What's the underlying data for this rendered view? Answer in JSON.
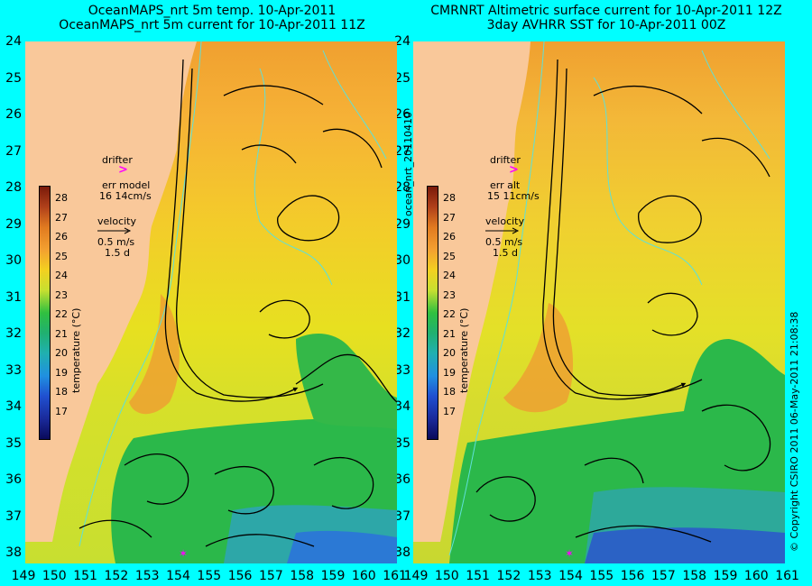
{
  "left_panel": {
    "title_line1": "OceanMAPS_nrt 5m temp. 10-Apr-2011",
    "title_line2": "OceanMAPS_nrt 5m current for 10-Apr-2011 11Z",
    "drifter_label": "drifter",
    "err_label": "err model",
    "err_value": "16 14cm/s",
    "velocity_label": "velocity",
    "velocity_scale": "0.5 m/s",
    "velocity_days": "1.5 d",
    "colorbar_title": "temperature (°C)"
  },
  "right_panel": {
    "title_line1": "CMRNRT Altimetric surface current for 10-Apr-2011 12Z",
    "title_line2": "3day AVHRR SST for 10-Apr-2011 00Z",
    "drifter_label": "drifter",
    "err_label": "err alt",
    "err_value": "15 11cm/s",
    "velocity_label": "velocity",
    "velocity_scale": "0.5 m/s",
    "velocity_days": "1.5 d",
    "colorbar_title": "temperature (°C)"
  },
  "lat_ticks": [
    "24",
    "25",
    "26",
    "27",
    "28",
    "29",
    "30",
    "31",
    "32",
    "33",
    "34",
    "35",
    "36",
    "37",
    "38"
  ],
  "lon_ticks": [
    "149",
    "150",
    "151",
    "152",
    "153",
    "154",
    "155",
    "156",
    "157",
    "158",
    "159",
    "160",
    "161"
  ],
  "colorbar_ticks": [
    "28",
    "27",
    "26",
    "25",
    "24",
    "23",
    "22",
    "21",
    "20",
    "19",
    "18",
    "17"
  ],
  "mid_vertical_text": "ocean_nrt_20110410",
  "right_vertical_text": "© Copyright CSIRO 2011   06-May-2011 21:08:38",
  "colors": {
    "land": "#f9c89a",
    "warm": "#f2a23a",
    "mid_warm": "#f1dc2a",
    "cool": "#2bb84a",
    "cold": "#2a6ee0",
    "drifter": "#ff00ff",
    "contour": "#5fe0d8"
  }
}
